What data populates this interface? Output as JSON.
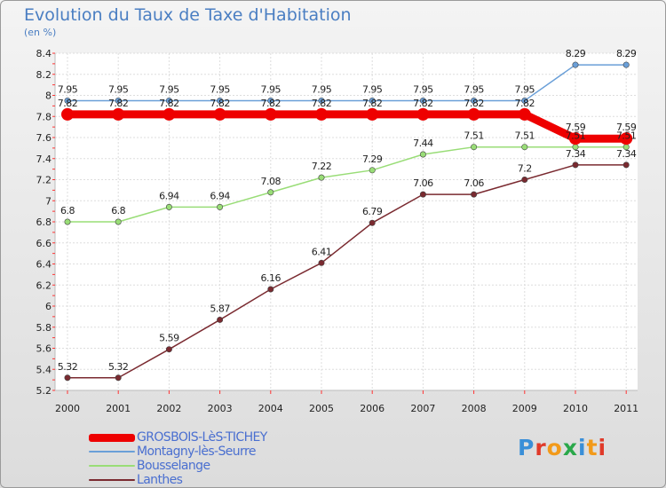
{
  "header": {
    "title": "Evolution du Taux de Taxe d'Habitation",
    "subtitle": "(en %)"
  },
  "brand": {
    "logo_text": "Proxiti"
  },
  "chart_data": {
    "type": "line",
    "title": "Evolution du Taux de Taxe d'Habitation",
    "subtitle": "(en %)",
    "xlabel": "",
    "ylabel": "",
    "categories": [
      "2000",
      "2001",
      "2002",
      "2003",
      "2004",
      "2005",
      "2006",
      "2007",
      "2008",
      "2009",
      "2010",
      "2011"
    ],
    "ylim": [
      5.2,
      8.4
    ],
    "yticks": [
      "5.2",
      "5.4",
      "5.6",
      "5.8",
      "6",
      "6.2",
      "6.4",
      "6.6",
      "6.8",
      "7",
      "7.2",
      "7.4",
      "7.6",
      "7.8",
      "8",
      "8.2",
      "8.4"
    ],
    "grid": true,
    "legend_position": "bottom-left",
    "series": [
      {
        "name": "GROSBOIS-LèS-TICHEY",
        "color": "#ee0000",
        "values": [
          7.82,
          7.82,
          7.82,
          7.82,
          7.82,
          7.82,
          7.82,
          7.82,
          7.82,
          7.82,
          7.59,
          7.59
        ],
        "labels": [
          "7.82",
          "7.82",
          "7.82",
          "7.82",
          "7.82",
          "7.82",
          "7.82",
          "7.82",
          "7.82",
          "7.82",
          "7.59",
          "7.59"
        ]
      },
      {
        "name": "Montagny-lès-Seurre",
        "color": "#6a9fd8",
        "values": [
          7.95,
          7.95,
          7.95,
          7.95,
          7.95,
          7.95,
          7.95,
          7.95,
          7.95,
          7.95,
          8.29,
          8.29
        ],
        "labels": [
          "7.95",
          "7.95",
          "7.95",
          "7.95",
          "7.95",
          "7.95",
          "7.95",
          "7.95",
          "7.95",
          "7.95",
          "8.29",
          "8.29"
        ]
      },
      {
        "name": "Bousselange",
        "color": "#99dd77",
        "values": [
          6.8,
          6.8,
          6.94,
          6.94,
          7.08,
          7.22,
          7.29,
          7.44,
          7.51,
          7.51,
          7.51,
          7.51
        ],
        "labels": [
          "6.8",
          "6.8",
          "6.94",
          "6.94",
          "7.08",
          "7.22",
          "7.29",
          "7.44",
          "7.51",
          "7.51",
          "7.51",
          "7.51"
        ]
      },
      {
        "name": "Lanthes",
        "color": "#7a2a30",
        "values": [
          5.32,
          5.32,
          5.59,
          5.87,
          6.16,
          6.41,
          6.79,
          7.06,
          7.06,
          7.2,
          7.34,
          7.34
        ],
        "labels": [
          "5.32",
          "5.32",
          "5.59",
          "5.87",
          "6.16",
          "6.41",
          "6.79",
          "7.06",
          "7.06",
          "7.2",
          "7.34",
          "7.34"
        ]
      }
    ]
  }
}
